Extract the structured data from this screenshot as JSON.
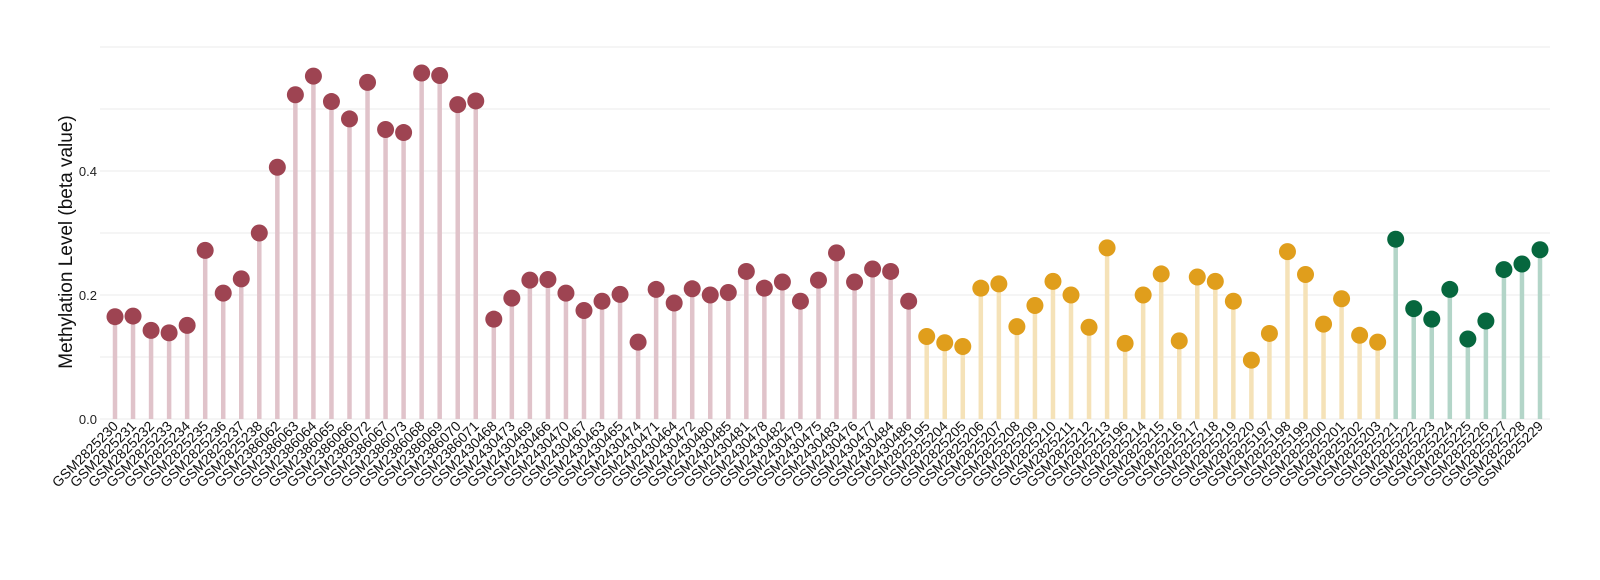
{
  "chart_data": {
    "type": "lollipop",
    "title": "",
    "xlabel": "",
    "ylabel": "Methylation Level (beta value)",
    "ylim": [
      0,
      0.6
    ],
    "yticks": [
      0.0,
      0.2,
      0.4
    ],
    "ytick_labels": [
      "0.0",
      "0.2",
      "0.4"
    ],
    "grid": true,
    "legend": "none",
    "groups": [
      {
        "color": "#9e4452",
        "stem_color": "#e0c3ca"
      },
      {
        "color": "#e09e1c",
        "stem_color": "#f5e2b8"
      },
      {
        "color": "#06673e",
        "stem_color": "#b3d5c8"
      }
    ],
    "points": [
      {
        "x": "GSM2825230",
        "y": 0.165,
        "group": 0
      },
      {
        "x": "GSM2825231",
        "y": 0.166,
        "group": 0
      },
      {
        "x": "GSM2825232",
        "y": 0.143,
        "group": 0
      },
      {
        "x": "GSM2825233",
        "y": 0.139,
        "group": 0
      },
      {
        "x": "GSM2825234",
        "y": 0.151,
        "group": 0
      },
      {
        "x": "GSM2825235",
        "y": 0.272,
        "group": 0
      },
      {
        "x": "GSM2825236",
        "y": 0.203,
        "group": 0
      },
      {
        "x": "GSM2825237",
        "y": 0.226,
        "group": 0
      },
      {
        "x": "GSM2825238",
        "y": 0.3,
        "group": 0
      },
      {
        "x": "GSM2386062",
        "y": 0.406,
        "group": 0
      },
      {
        "x": "GSM2386063",
        "y": 0.523,
        "group": 0
      },
      {
        "x": "GSM2386064",
        "y": 0.553,
        "group": 0
      },
      {
        "x": "GSM2386065",
        "y": 0.512,
        "group": 0
      },
      {
        "x": "GSM2386066",
        "y": 0.484,
        "group": 0
      },
      {
        "x": "GSM2386072",
        "y": 0.543,
        "group": 0
      },
      {
        "x": "GSM2386067",
        "y": 0.467,
        "group": 0
      },
      {
        "x": "GSM2386073",
        "y": 0.462,
        "group": 0
      },
      {
        "x": "GSM2386068",
        "y": 0.558,
        "group": 0
      },
      {
        "x": "GSM2386069",
        "y": 0.554,
        "group": 0
      },
      {
        "x": "GSM2386070",
        "y": 0.507,
        "group": 0
      },
      {
        "x": "GSM2386071",
        "y": 0.513,
        "group": 0
      },
      {
        "x": "GSM2430468",
        "y": 0.161,
        "group": 0
      },
      {
        "x": "GSM2430473",
        "y": 0.195,
        "group": 0
      },
      {
        "x": "GSM2430469",
        "y": 0.224,
        "group": 0
      },
      {
        "x": "GSM2430466",
        "y": 0.225,
        "group": 0
      },
      {
        "x": "GSM2430470",
        "y": 0.203,
        "group": 0
      },
      {
        "x": "GSM2430467",
        "y": 0.175,
        "group": 0
      },
      {
        "x": "GSM2430463",
        "y": 0.19,
        "group": 0
      },
      {
        "x": "GSM2430465",
        "y": 0.201,
        "group": 0
      },
      {
        "x": "GSM2430474",
        "y": 0.124,
        "group": 0
      },
      {
        "x": "GSM2430471",
        "y": 0.209,
        "group": 0
      },
      {
        "x": "GSM2430464",
        "y": 0.187,
        "group": 0
      },
      {
        "x": "GSM2430472",
        "y": 0.21,
        "group": 0
      },
      {
        "x": "GSM2430480",
        "y": 0.2,
        "group": 0
      },
      {
        "x": "GSM2430485",
        "y": 0.204,
        "group": 0
      },
      {
        "x": "GSM2430481",
        "y": 0.238,
        "group": 0
      },
      {
        "x": "GSM2430478",
        "y": 0.211,
        "group": 0
      },
      {
        "x": "GSM2430482",
        "y": 0.221,
        "group": 0
      },
      {
        "x": "GSM2430479",
        "y": 0.19,
        "group": 0
      },
      {
        "x": "GSM2430475",
        "y": 0.224,
        "group": 0
      },
      {
        "x": "GSM2430483",
        "y": 0.268,
        "group": 0
      },
      {
        "x": "GSM2430476",
        "y": 0.221,
        "group": 0
      },
      {
        "x": "GSM2430477",
        "y": 0.242,
        "group": 0
      },
      {
        "x": "GSM2430484",
        "y": 0.238,
        "group": 0
      },
      {
        "x": "GSM2430486",
        "y": 0.19,
        "group": 0
      },
      {
        "x": "GSM2825195",
        "y": 0.133,
        "group": 1
      },
      {
        "x": "GSM2825204",
        "y": 0.123,
        "group": 1
      },
      {
        "x": "GSM2825205",
        "y": 0.117,
        "group": 1
      },
      {
        "x": "GSM2825206",
        "y": 0.211,
        "group": 1
      },
      {
        "x": "GSM2825207",
        "y": 0.218,
        "group": 1
      },
      {
        "x": "GSM2825208",
        "y": 0.149,
        "group": 1
      },
      {
        "x": "GSM2825209",
        "y": 0.183,
        "group": 1
      },
      {
        "x": "GSM2825210",
        "y": 0.222,
        "group": 1
      },
      {
        "x": "GSM2825211",
        "y": 0.2,
        "group": 1
      },
      {
        "x": "GSM2825212",
        "y": 0.148,
        "group": 1
      },
      {
        "x": "GSM2825213",
        "y": 0.276,
        "group": 1
      },
      {
        "x": "GSM2825196",
        "y": 0.122,
        "group": 1
      },
      {
        "x": "GSM2825214",
        "y": 0.2,
        "group": 1
      },
      {
        "x": "GSM2825215",
        "y": 0.234,
        "group": 1
      },
      {
        "x": "GSM2825216",
        "y": 0.126,
        "group": 1
      },
      {
        "x": "GSM2825217",
        "y": 0.229,
        "group": 1
      },
      {
        "x": "GSM2825218",
        "y": 0.222,
        "group": 1
      },
      {
        "x": "GSM2825219",
        "y": 0.19,
        "group": 1
      },
      {
        "x": "GSM2825220",
        "y": 0.095,
        "group": 1
      },
      {
        "x": "GSM2825197",
        "y": 0.138,
        "group": 1
      },
      {
        "x": "GSM2825198",
        "y": 0.27,
        "group": 1
      },
      {
        "x": "GSM2825199",
        "y": 0.233,
        "group": 1
      },
      {
        "x": "GSM2825200",
        "y": 0.153,
        "group": 1
      },
      {
        "x": "GSM2825201",
        "y": 0.194,
        "group": 1
      },
      {
        "x": "GSM2825202",
        "y": 0.135,
        "group": 1
      },
      {
        "x": "GSM2825203",
        "y": 0.124,
        "group": 1
      },
      {
        "x": "GSM2825221",
        "y": 0.29,
        "group": 2
      },
      {
        "x": "GSM2825222",
        "y": 0.178,
        "group": 2
      },
      {
        "x": "GSM2825223",
        "y": 0.161,
        "group": 2
      },
      {
        "x": "GSM2825224",
        "y": 0.209,
        "group": 2
      },
      {
        "x": "GSM2825225",
        "y": 0.129,
        "group": 2
      },
      {
        "x": "GSM2825226",
        "y": 0.158,
        "group": 2
      },
      {
        "x": "GSM2825227",
        "y": 0.241,
        "group": 2
      },
      {
        "x": "GSM2825228",
        "y": 0.25,
        "group": 2
      },
      {
        "x": "GSM2825229",
        "y": 0.273,
        "group": 2
      }
    ]
  }
}
